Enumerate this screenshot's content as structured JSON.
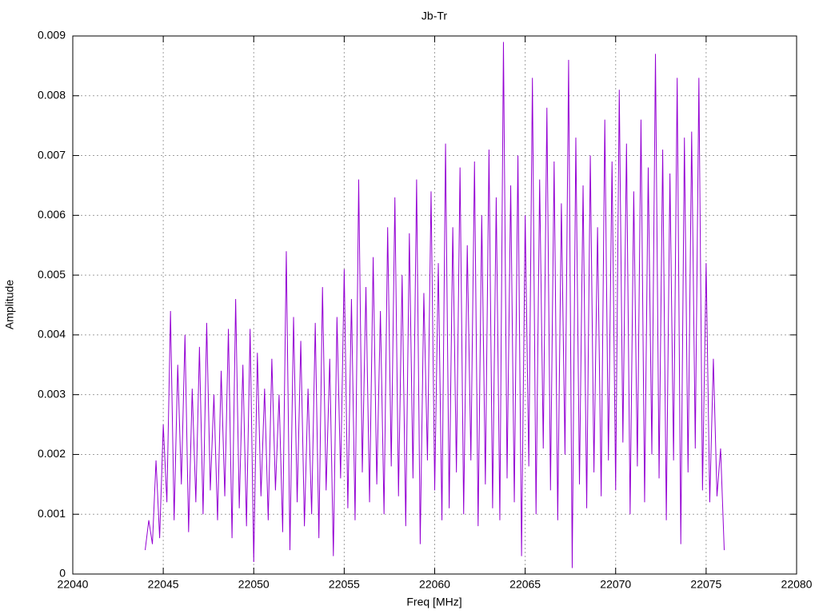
{
  "chart_data": {
    "type": "line",
    "title": "Jb-Tr",
    "x_label": "Freq [MHz]",
    "y_label": "Amplitude",
    "color": "#9400d3",
    "grid": true,
    "xlim": [
      22040,
      22080
    ],
    "xticks": [
      22040,
      22045,
      22050,
      22055,
      22060,
      22065,
      22070,
      22075,
      22080
    ],
    "ylim": [
      0,
      0.009
    ],
    "yticks": [
      0,
      0.001,
      0.002,
      0.003,
      0.004,
      0.005,
      0.006,
      0.007,
      0.008,
      0.009
    ],
    "x": [
      22044.0,
      22044.2,
      22044.4,
      22044.6,
      22044.8,
      22045.0,
      22045.2,
      22045.4,
      22045.6,
      22045.8,
      22046.0,
      22046.2,
      22046.4,
      22046.6,
      22046.8,
      22047.0,
      22047.2,
      22047.4,
      22047.6,
      22047.8,
      22048.0,
      22048.2,
      22048.4,
      22048.6,
      22048.8,
      22049.0,
      22049.2,
      22049.4,
      22049.6,
      22049.8,
      22050.0,
      22050.2,
      22050.4,
      22050.6,
      22050.8,
      22051.0,
      22051.2,
      22051.4,
      22051.6,
      22051.8,
      22052.0,
      22052.2,
      22052.4,
      22052.6,
      22052.8,
      22053.0,
      22053.2,
      22053.4,
      22053.6,
      22053.8,
      22054.0,
      22054.2,
      22054.4,
      22054.6,
      22054.8,
      22055.0,
      22055.2,
      22055.4,
      22055.6,
      22055.8,
      22056.0,
      22056.2,
      22056.4,
      22056.6,
      22056.8,
      22057.0,
      22057.2,
      22057.4,
      22057.6,
      22057.8,
      22058.0,
      22058.2,
      22058.4,
      22058.6,
      22058.8,
      22059.0,
      22059.2,
      22059.4,
      22059.6,
      22059.8,
      22060.0,
      22060.2,
      22060.4,
      22060.6,
      22060.8,
      22061.0,
      22061.2,
      22061.4,
      22061.6,
      22061.8,
      22062.0,
      22062.2,
      22062.4,
      22062.6,
      22062.8,
      22063.0,
      22063.2,
      22063.4,
      22063.6,
      22063.8,
      22064.0,
      22064.2,
      22064.4,
      22064.6,
      22064.8,
      22065.0,
      22065.2,
      22065.4,
      22065.6,
      22065.8,
      22066.0,
      22066.2,
      22066.4,
      22066.6,
      22066.8,
      22067.0,
      22067.2,
      22067.4,
      22067.6,
      22067.8,
      22068.0,
      22068.2,
      22068.4,
      22068.6,
      22068.8,
      22069.0,
      22069.2,
      22069.4,
      22069.6,
      22069.8,
      22070.0,
      22070.2,
      22070.4,
      22070.6,
      22070.8,
      22071.0,
      22071.2,
      22071.4,
      22071.6,
      22071.8,
      22072.0,
      22072.2,
      22072.4,
      22072.6,
      22072.8,
      22073.0,
      22073.2,
      22073.4,
      22073.6,
      22073.8,
      22074.0,
      22074.2,
      22074.4,
      22074.6,
      22074.8,
      22075.0,
      22075.2,
      22075.4,
      22075.6,
      22075.8,
      22076.0
    ],
    "values": [
      0.0004,
      0.0009,
      0.0005,
      0.0019,
      0.0006,
      0.0025,
      0.0012,
      0.0044,
      0.0009,
      0.0035,
      0.0015,
      0.004,
      0.0007,
      0.0031,
      0.0012,
      0.0038,
      0.001,
      0.0042,
      0.0014,
      0.003,
      0.0009,
      0.0034,
      0.0013,
      0.0041,
      0.0006,
      0.0046,
      0.0011,
      0.0035,
      0.0008,
      0.0041,
      0.0002,
      0.0037,
      0.0013,
      0.0031,
      0.0009,
      0.0036,
      0.0014,
      0.003,
      0.0007,
      0.0054,
      0.0004,
      0.0043,
      0.0012,
      0.0039,
      0.0008,
      0.0031,
      0.001,
      0.0042,
      0.0006,
      0.0048,
      0.0014,
      0.0036,
      0.0003,
      0.0043,
      0.0016,
      0.0051,
      0.0011,
      0.0046,
      0.0009,
      0.0066,
      0.0017,
      0.0048,
      0.0012,
      0.0053,
      0.0015,
      0.0044,
      0.001,
      0.0058,
      0.0018,
      0.0063,
      0.0013,
      0.005,
      0.0008,
      0.0057,
      0.0016,
      0.0066,
      0.0005,
      0.0047,
      0.0019,
      0.0064,
      0.0014,
      0.0052,
      0.0009,
      0.0072,
      0.0011,
      0.0058,
      0.0017,
      0.0068,
      0.001,
      0.0055,
      0.0019,
      0.0069,
      0.0008,
      0.006,
      0.0015,
      0.0071,
      0.0011,
      0.0063,
      0.0009,
      0.0089,
      0.0016,
      0.0065,
      0.0012,
      0.007,
      0.0003,
      0.006,
      0.0018,
      0.0083,
      0.001,
      0.0066,
      0.0021,
      0.0078,
      0.0014,
      0.0069,
      0.0009,
      0.0062,
      0.002,
      0.0086,
      0.0001,
      0.0073,
      0.0015,
      0.0065,
      0.0011,
      0.007,
      0.0017,
      0.0058,
      0.0013,
      0.0076,
      0.0019,
      0.0069,
      0.0014,
      0.0081,
      0.0022,
      0.0072,
      0.001,
      0.0064,
      0.0018,
      0.0076,
      0.0012,
      0.0068,
      0.002,
      0.0087,
      0.0016,
      0.0071,
      0.0009,
      0.0067,
      0.0019,
      0.0083,
      0.0005,
      0.0073,
      0.0017,
      0.0074,
      0.0021,
      0.0083,
      0.0014,
      0.0052,
      0.0012,
      0.0036,
      0.0013,
      0.0021,
      0.0004
    ]
  }
}
